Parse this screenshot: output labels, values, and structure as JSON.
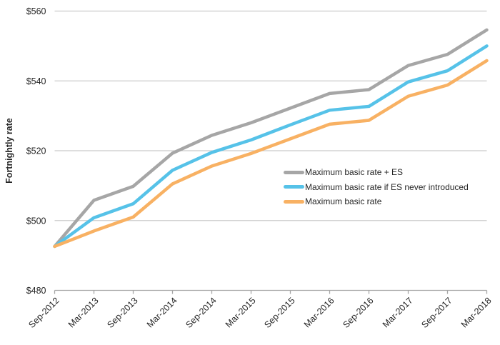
{
  "chart_data": {
    "type": "line",
    "title": "",
    "xlabel": "",
    "ylabel": "Fortnightly rate",
    "ylim": [
      480,
      560
    ],
    "grid": true,
    "legend_position": "inside-right",
    "y_ticks": [
      {
        "value": 560,
        "label": "$560"
      },
      {
        "value": 540,
        "label": "$540"
      },
      {
        "value": 520,
        "label": "$520"
      },
      {
        "value": 500,
        "label": "$500"
      },
      {
        "value": 480,
        "label": "$480"
      }
    ],
    "x": [
      "Sep-2012",
      "Mar-2013",
      "Sep-2013",
      "Mar-2014",
      "Sep-2014",
      "Mar-2015",
      "Sep-2015",
      "Mar-2016",
      "Sep-2016",
      "Mar-2017",
      "Sep-2017",
      "Mar-2018"
    ],
    "series": [
      {
        "name": "Maximum basic rate + ES",
        "color": "#a6a6a6",
        "values": [
          492.6,
          505.8,
          509.8,
          519.3,
          524.4,
          528.0,
          532.2,
          536.4,
          537.5,
          544.4,
          547.6,
          554.6
        ]
      },
      {
        "name": "Maximum basic rate if ES never introduced",
        "color": "#56c2e8",
        "values": [
          492.6,
          500.8,
          504.8,
          514.4,
          519.5,
          523.1,
          527.4,
          531.6,
          532.7,
          539.7,
          542.9,
          550.0
        ]
      },
      {
        "name": "Maximum basic rate",
        "color": "#f8b163",
        "values": [
          492.6,
          497.0,
          501.0,
          510.5,
          515.6,
          519.2,
          523.4,
          527.6,
          528.7,
          535.6,
          538.8,
          545.8
        ]
      }
    ]
  }
}
